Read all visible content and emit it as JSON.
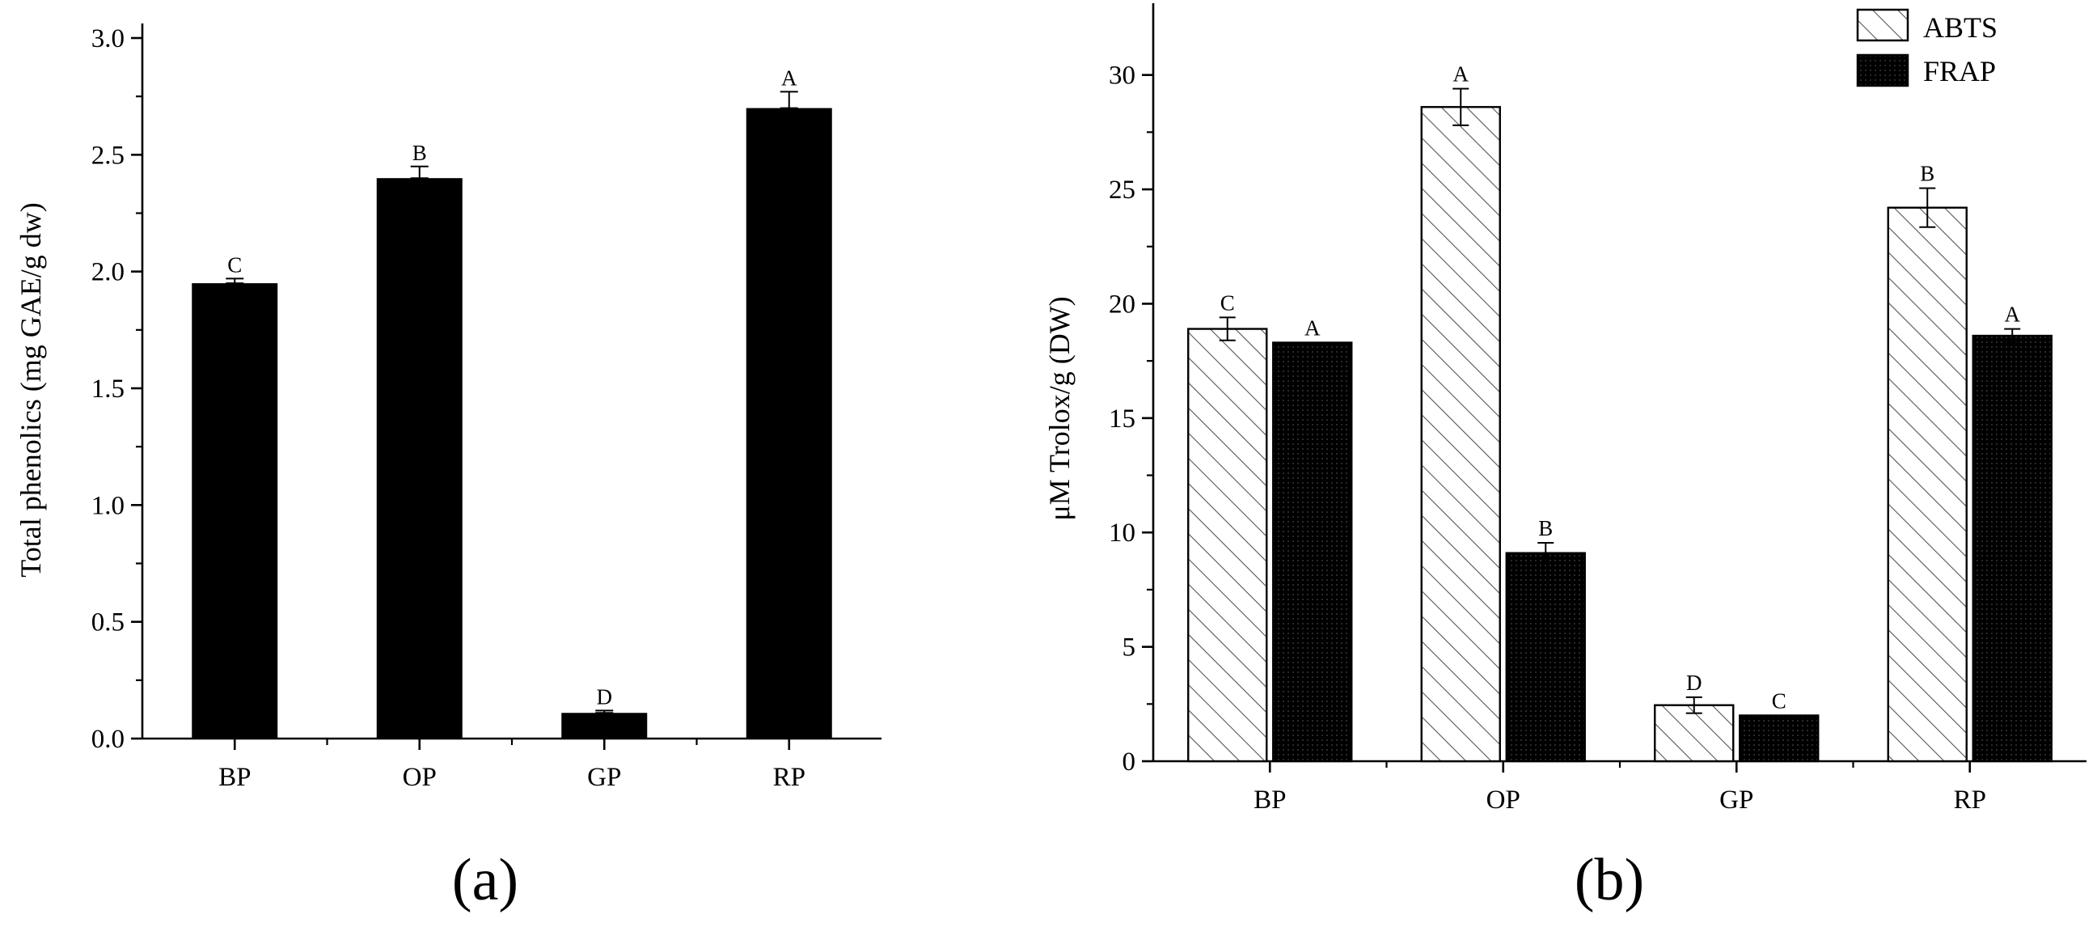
{
  "colors": {
    "bar_solid": "#000000",
    "bar_hatch_line": "#555555",
    "frap_fill": "#111111",
    "axis": "#000000"
  },
  "chart_data": [
    {
      "type": "bar",
      "panel_label": "(a)",
      "categories": [
        "BP",
        "OP",
        "GP",
        "RP"
      ],
      "values": [
        1.95,
        2.4,
        0.11,
        2.7
      ],
      "errors": [
        0.02,
        0.05,
        0.01,
        0.07
      ],
      "significance": [
        "C",
        "B",
        "D",
        "A"
      ],
      "ylabel": "Total phenolics (mg GAE/g dw)",
      "xlabel": "",
      "ylim": [
        0,
        3.0
      ],
      "yticks": [
        "0.0",
        "0.5",
        "1.0",
        "1.5",
        "2.0",
        "2.5",
        "3.0"
      ],
      "legend": null
    },
    {
      "type": "bar",
      "panel_label": "(b)",
      "categories": [
        "BP",
        "OP",
        "GP",
        "RP"
      ],
      "series": [
        {
          "name": "ABTS",
          "pattern": "hatched",
          "values": [
            18.9,
            28.6,
            2.45,
            24.2
          ],
          "errors": [
            0.5,
            0.8,
            0.35,
            0.85
          ],
          "significance": [
            "C",
            "A",
            "D",
            "B"
          ]
        },
        {
          "name": "FRAP",
          "pattern": "dark",
          "values": [
            18.3,
            9.1,
            2.0,
            18.6
          ],
          "errors": [
            0.0,
            0.45,
            0.0,
            0.3
          ],
          "significance": [
            "A",
            "B",
            "C",
            "A"
          ]
        }
      ],
      "ylabel": "μM Trolox/g (DW)",
      "xlabel": "",
      "ylim": [
        0,
        32.5
      ],
      "yticks": [
        "0",
        "5",
        "10",
        "15",
        "20",
        "25",
        "30"
      ],
      "legend": "top-right"
    }
  ]
}
